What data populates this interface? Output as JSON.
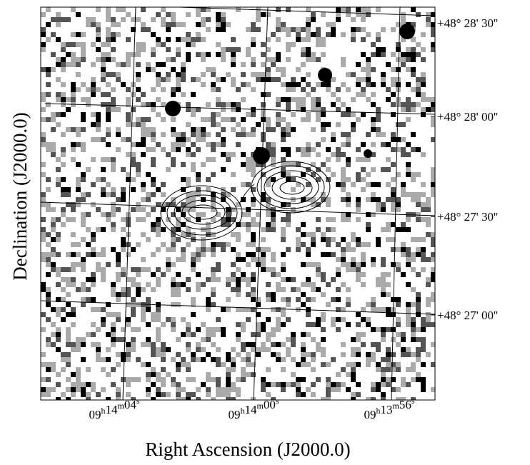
{
  "figure": {
    "x_axis_title": "Right Ascension  (J2000.0)",
    "y_axis_title": "Declination  (J2000.0)",
    "ra_units": [
      "h",
      "m",
      "s"
    ],
    "ra_ticks": [
      {
        "h": "09",
        "m": "14",
        "s": "04"
      },
      {
        "h": "09",
        "m": "14",
        "s": "00"
      },
      {
        "h": "09",
        "m": "13",
        "s": "56"
      }
    ],
    "dec_ticks": [
      "+48° 28' 30''",
      "+48° 28' 00''",
      "+48° 27' 30''",
      "+48° 27' 00''"
    ]
  }
}
